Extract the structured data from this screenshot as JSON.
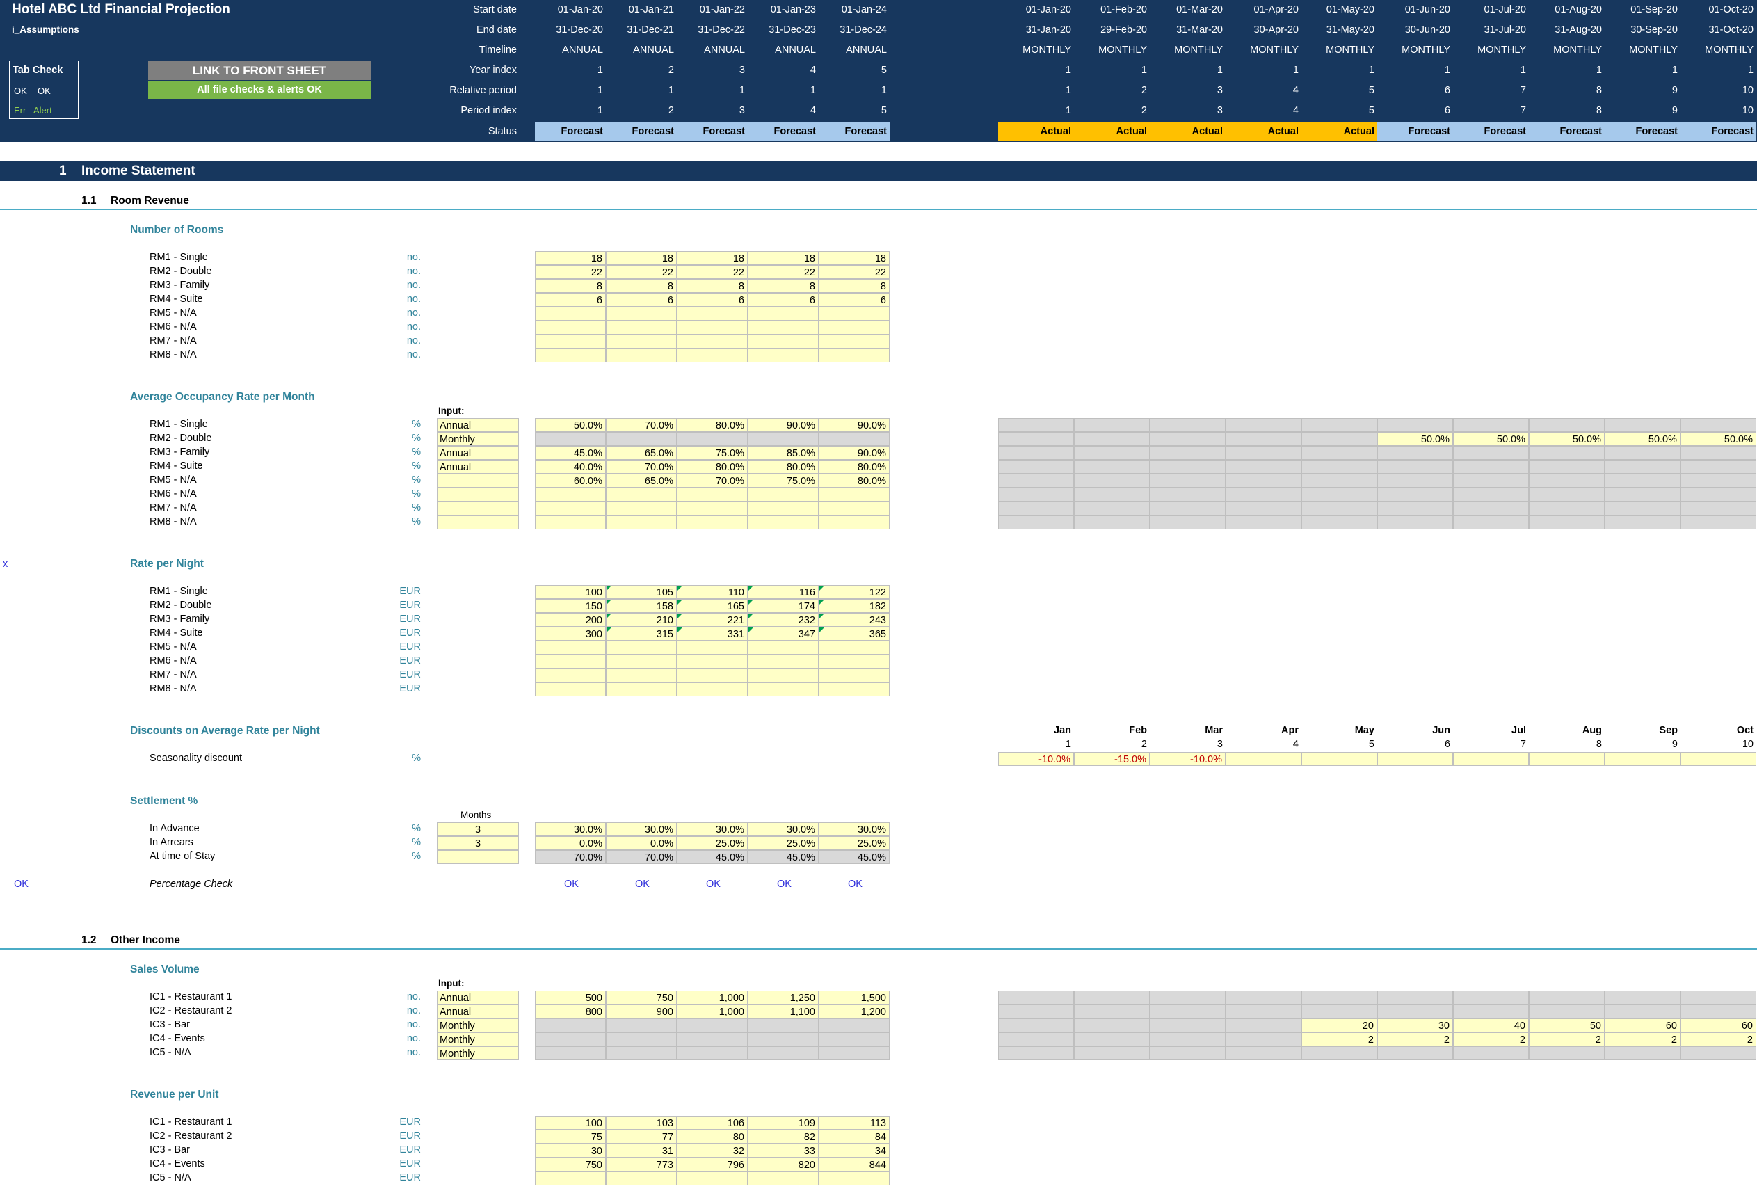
{
  "header": {
    "title": "Hotel ABC Ltd Financial Projection",
    "sheet_name": "i_Assumptions",
    "tab_check_label": "Tab Check",
    "tab_check_ok1": "OK",
    "tab_check_ok2": "OK",
    "tab_check_err": "Err",
    "tab_check_alert": "Alert",
    "link_button": "LINK TO FRONT SHEET",
    "checks_status": "All file checks & alerts OK",
    "row_labels": [
      "Start date",
      "End date",
      "Timeline",
      "Year index",
      "Relative period",
      "Period index",
      "Status"
    ],
    "annual": {
      "start": [
        "01-Jan-20",
        "01-Jan-21",
        "01-Jan-22",
        "01-Jan-23",
        "01-Jan-24"
      ],
      "end": [
        "31-Dec-20",
        "31-Dec-21",
        "31-Dec-22",
        "31-Dec-23",
        "31-Dec-24"
      ],
      "timeline": [
        "ANNUAL",
        "ANNUAL",
        "ANNUAL",
        "ANNUAL",
        "ANNUAL"
      ],
      "year_index": [
        "1",
        "2",
        "3",
        "4",
        "5"
      ],
      "relative": [
        "1",
        "1",
        "1",
        "1",
        "1"
      ],
      "period": [
        "1",
        "2",
        "3",
        "4",
        "5"
      ],
      "status": [
        "Forecast",
        "Forecast",
        "Forecast",
        "Forecast",
        "Forecast"
      ]
    },
    "monthly": {
      "start": [
        "01-Jan-20",
        "01-Feb-20",
        "01-Mar-20",
        "01-Apr-20",
        "01-May-20",
        "01-Jun-20",
        "01-Jul-20",
        "01-Aug-20",
        "01-Sep-20",
        "01-Oct-20"
      ],
      "end": [
        "31-Jan-20",
        "29-Feb-20",
        "31-Mar-20",
        "30-Apr-20",
        "31-May-20",
        "30-Jun-20",
        "31-Jul-20",
        "31-Aug-20",
        "30-Sep-20",
        "31-Oct-20"
      ],
      "timeline": [
        "MONTHLY",
        "MONTHLY",
        "MONTHLY",
        "MONTHLY",
        "MONTHLY",
        "MONTHLY",
        "MONTHLY",
        "MONTHLY",
        "MONTHLY",
        "MONTHLY"
      ],
      "year_index": [
        "1",
        "1",
        "1",
        "1",
        "1",
        "1",
        "1",
        "1",
        "1",
        "1"
      ],
      "relative": [
        "1",
        "2",
        "3",
        "4",
        "5",
        "6",
        "7",
        "8",
        "9",
        "10"
      ],
      "period": [
        "1",
        "2",
        "3",
        "4",
        "5",
        "6",
        "7",
        "8",
        "9",
        "10"
      ],
      "status": [
        "Actual",
        "Actual",
        "Actual",
        "Actual",
        "Actual",
        "Forecast",
        "Forecast",
        "Forecast",
        "Forecast",
        "Forecast"
      ]
    }
  },
  "income_statement": {
    "num": "1",
    "title": "Income Statement",
    "room_revenue": {
      "num": "1.1",
      "title": "Room Revenue",
      "rooms": {
        "title": "Number of Rooms",
        "rows": [
          {
            "label": "RM1 - Single",
            "unit": "no.",
            "values": [
              "18",
              "18",
              "18",
              "18",
              "18"
            ]
          },
          {
            "label": "RM2 - Double",
            "unit": "no.",
            "values": [
              "22",
              "22",
              "22",
              "22",
              "22"
            ]
          },
          {
            "label": "RM3 - Family",
            "unit": "no.",
            "values": [
              "8",
              "8",
              "8",
              "8",
              "8"
            ]
          },
          {
            "label": "RM4 - Suite",
            "unit": "no.",
            "values": [
              "6",
              "6",
              "6",
              "6",
              "6"
            ]
          },
          {
            "label": "RM5 - N/A",
            "unit": "no.",
            "values": [
              "",
              "",
              "",
              "",
              ""
            ]
          },
          {
            "label": "RM6 - N/A",
            "unit": "no.",
            "values": [
              "",
              "",
              "",
              "",
              ""
            ]
          },
          {
            "label": "RM7 - N/A",
            "unit": "no.",
            "values": [
              "",
              "",
              "",
              "",
              ""
            ]
          },
          {
            "label": "RM8 - N/A",
            "unit": "no.",
            "values": [
              "",
              "",
              "",
              "",
              ""
            ]
          }
        ]
      },
      "occupancy": {
        "title": "Average Occupancy Rate per Month",
        "input_label": "Input:",
        "rows": [
          {
            "label": "RM1 - Single",
            "unit": "%",
            "input": "Annual",
            "values": [
              "50.0%",
              "70.0%",
              "80.0%",
              "90.0%",
              "90.0%"
            ],
            "monthly": [
              "",
              "",
              "",
              "",
              "",
              "",
              "",
              "",
              "",
              ""
            ]
          },
          {
            "label": "RM2 - Double",
            "unit": "%",
            "input": "Monthly",
            "values": [
              "",
              "",
              "",
              "",
              ""
            ],
            "monthly": [
              "",
              "",
              "",
              "",
              "",
              "50.0%",
              "50.0%",
              "50.0%",
              "50.0%",
              "50.0%"
            ]
          },
          {
            "label": "RM3 - Family",
            "unit": "%",
            "input": "Annual",
            "values": [
              "45.0%",
              "65.0%",
              "75.0%",
              "85.0%",
              "90.0%"
            ],
            "monthly": [
              "",
              "",
              "",
              "",
              "",
              "",
              "",
              "",
              "",
              ""
            ]
          },
          {
            "label": "RM4 - Suite",
            "unit": "%",
            "input": "Annual",
            "values": [
              "40.0%",
              "70.0%",
              "80.0%",
              "80.0%",
              "80.0%"
            ],
            "monthly": [
              "",
              "",
              "",
              "",
              "",
              "",
              "",
              "",
              "",
              ""
            ]
          },
          {
            "label": "RM5 - N/A",
            "unit": "%",
            "input": "",
            "values": [
              "60.0%",
              "65.0%",
              "70.0%",
              "75.0%",
              "80.0%"
            ],
            "monthly": [
              "",
              "",
              "",
              "",
              "",
              "",
              "",
              "",
              "",
              ""
            ]
          },
          {
            "label": "RM6 - N/A",
            "unit": "%",
            "input": "",
            "values": [
              "",
              "",
              "",
              "",
              ""
            ],
            "monthly": [
              "",
              "",
              "",
              "",
              "",
              "",
              "",
              "",
              "",
              ""
            ]
          },
          {
            "label": "RM7 - N/A",
            "unit": "%",
            "input": "",
            "values": [
              "",
              "",
              "",
              "",
              ""
            ],
            "monthly": [
              "",
              "",
              "",
              "",
              "",
              "",
              "",
              "",
              "",
              ""
            ]
          },
          {
            "label": "RM8 - N/A",
            "unit": "%",
            "input": "",
            "values": [
              "",
              "",
              "",
              "",
              ""
            ],
            "monthly": [
              "",
              "",
              "",
              "",
              "",
              "",
              "",
              "",
              "",
              ""
            ]
          }
        ]
      },
      "rate": {
        "title": "Rate per Night",
        "marker": "x",
        "rows": [
          {
            "label": "RM1 - Single",
            "unit": "EUR",
            "values": [
              "100",
              "105",
              "110",
              "116",
              "122"
            ]
          },
          {
            "label": "RM2 - Double",
            "unit": "EUR",
            "values": [
              "150",
              "158",
              "165",
              "174",
              "182"
            ]
          },
          {
            "label": "RM3 - Family",
            "unit": "EUR",
            "values": [
              "200",
              "210",
              "221",
              "232",
              "243"
            ]
          },
          {
            "label": "RM4 - Suite",
            "unit": "EUR",
            "values": [
              "300",
              "315",
              "331",
              "347",
              "365"
            ]
          },
          {
            "label": "RM5 - N/A",
            "unit": "EUR",
            "values": [
              "",
              "",
              "",
              "",
              ""
            ]
          },
          {
            "label": "RM6 - N/A",
            "unit": "EUR",
            "values": [
              "",
              "",
              "",
              "",
              ""
            ]
          },
          {
            "label": "RM7 - N/A",
            "unit": "EUR",
            "values": [
              "",
              "",
              "",
              "",
              ""
            ]
          },
          {
            "label": "RM8 - N/A",
            "unit": "EUR",
            "values": [
              "",
              "",
              "",
              "",
              ""
            ]
          }
        ]
      },
      "discounts": {
        "title": "Discounts on Average Rate per Night",
        "months": [
          "Jan",
          "Feb",
          "Mar",
          "Apr",
          "May",
          "Jun",
          "Jul",
          "Aug",
          "Sep",
          "Oct"
        ],
        "month_nums": [
          "1",
          "2",
          "3",
          "4",
          "5",
          "6",
          "7",
          "8",
          "9",
          "10"
        ],
        "row_label": "Seasonality discount",
        "unit": "%",
        "values": [
          "-10.0%",
          "-15.0%",
          "-10.0%",
          "",
          "",
          "",
          "",
          "",
          "",
          ""
        ]
      },
      "settlement": {
        "title": "Settlement %",
        "months_label": "Months",
        "rows": [
          {
            "label": "In Advance",
            "unit": "%",
            "months": "3",
            "values": [
              "30.0%",
              "30.0%",
              "30.0%",
              "30.0%",
              "30.0%"
            ]
          },
          {
            "label": "In Arrears",
            "unit": "%",
            "months": "3",
            "values": [
              "0.0%",
              "0.0%",
              "25.0%",
              "25.0%",
              "25.0%"
            ]
          },
          {
            "label": "At time of Stay",
            "unit": "%",
            "months": "",
            "values": [
              "70.0%",
              "70.0%",
              "45.0%",
              "45.0%",
              "45.0%"
            ]
          }
        ],
        "check_flag": "OK",
        "check_label": "Percentage Check",
        "check_values": [
          "OK",
          "OK",
          "OK",
          "OK",
          "OK"
        ]
      }
    },
    "other_income": {
      "num": "1.2",
      "title": "Other Income",
      "sales_volume": {
        "title": "Sales Volume",
        "input_label": "Input:",
        "rows": [
          {
            "label": "IC1 - Restaurant 1",
            "unit": "no.",
            "input": "Annual",
            "values": [
              "500",
              "750",
              "1,000",
              "1,250",
              "1,500"
            ],
            "monthly": [
              "",
              "",
              "",
              "",
              "",
              "",
              "",
              "",
              "",
              ""
            ]
          },
          {
            "label": "IC2 - Restaurant 2",
            "unit": "no.",
            "input": "Annual",
            "values": [
              "800",
              "900",
              "1,000",
              "1,100",
              "1,200"
            ],
            "monthly": [
              "",
              "",
              "",
              "",
              "",
              "",
              "",
              "",
              "",
              ""
            ]
          },
          {
            "label": "IC3 - Bar",
            "unit": "no.",
            "input": "Monthly",
            "values": [
              "",
              "",
              "",
              "",
              ""
            ],
            "monthly": [
              "",
              "",
              "",
              "",
              "20",
              "30",
              "40",
              "50",
              "60",
              "60"
            ]
          },
          {
            "label": "IC4 - Events",
            "unit": "no.",
            "input": "Monthly",
            "values": [
              "",
              "",
              "",
              "",
              ""
            ],
            "monthly": [
              "",
              "",
              "",
              "",
              "2",
              "2",
              "2",
              "2",
              "2",
              "2"
            ]
          },
          {
            "label": "IC5 - N/A",
            "unit": "no.",
            "input": "Monthly",
            "values": [
              "",
              "",
              "",
              "",
              ""
            ],
            "monthly": [
              "",
              "",
              "",
              "",
              "",
              "",
              "",
              "",
              "",
              ""
            ]
          }
        ]
      },
      "revenue_per_unit": {
        "title": "Revenue per Unit",
        "rows": [
          {
            "label": "IC1 - Restaurant 1",
            "unit": "EUR",
            "values": [
              "100",
              "103",
              "106",
              "109",
              "113"
            ]
          },
          {
            "label": "IC2 - Restaurant 2",
            "unit": "EUR",
            "values": [
              "75",
              "77",
              "80",
              "82",
              "84"
            ]
          },
          {
            "label": "IC3 - Bar",
            "unit": "EUR",
            "values": [
              "30",
              "31",
              "32",
              "33",
              "34"
            ]
          },
          {
            "label": "IC4 - Events",
            "unit": "EUR",
            "values": [
              "750",
              "773",
              "796",
              "820",
              "844"
            ]
          },
          {
            "label": "IC5 - N/A",
            "unit": "EUR",
            "values": [
              "",
              "",
              "",
              "",
              ""
            ]
          }
        ]
      }
    }
  },
  "colors": {
    "header_bg": "#17375e",
    "forecast": "#a6c9ec",
    "actual": "#ffc000",
    "input_cell": "#ffffc7",
    "calc_cell": "#d9d9d9",
    "group_title": "#31849b",
    "ok_ok": "#7ab648"
  }
}
